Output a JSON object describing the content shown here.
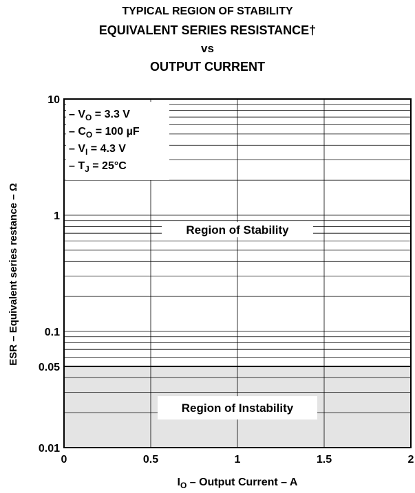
{
  "chart_data": {
    "type": "area",
    "title_lines": [
      "TYPICAL REGION OF STABILITY",
      "EQUIVALENT SERIES RESISTANCE†",
      "vs",
      "OUTPUT CURRENT"
    ],
    "xlabel_parts": [
      "I",
      "O",
      " – Output Current – A"
    ],
    "ylabel": "ESR – Equivalent series restance – Ω",
    "x_scale": "linear",
    "y_scale": "log",
    "xlim": [
      0,
      2
    ],
    "ylim": [
      0.01,
      10
    ],
    "x_ticks": [
      {
        "value": 0,
        "label": "0"
      },
      {
        "value": 0.5,
        "label": "0.5"
      },
      {
        "value": 1,
        "label": "1"
      },
      {
        "value": 1.5,
        "label": "1.5"
      },
      {
        "value": 2,
        "label": "2"
      }
    ],
    "y_ticks": [
      {
        "value": 10,
        "label": "10"
      },
      {
        "value": 1,
        "label": "1"
      },
      {
        "value": 0.1,
        "label": "0.1"
      },
      {
        "value": 0.05,
        "label": "0.05"
      },
      {
        "value": 0.01,
        "label": "0.01"
      }
    ],
    "grid": true,
    "boundary_esr": 0.05,
    "regions": [
      {
        "name": "Region of Stability",
        "y_range": [
          0.05,
          10
        ],
        "fill": "#ffffff",
        "label_at": {
          "x": 1,
          "y": 0.75
        }
      },
      {
        "name": "Region of Instability",
        "y_range": [
          0.01,
          0.05
        ],
        "fill": "#e4e4e4",
        "label_at": {
          "x": 1,
          "y": 0.022
        }
      }
    ],
    "conditions": [
      {
        "symbol": "V",
        "sub": "O",
        "rest": " = 3.3 V"
      },
      {
        "symbol": "C",
        "sub": "O",
        "rest": " = 100 µF"
      },
      {
        "symbol": "V",
        "sub": "I",
        "rest": " = 4.3 V"
      },
      {
        "symbol": "T",
        "sub": "J",
        "rest": " = 25°C"
      }
    ]
  }
}
